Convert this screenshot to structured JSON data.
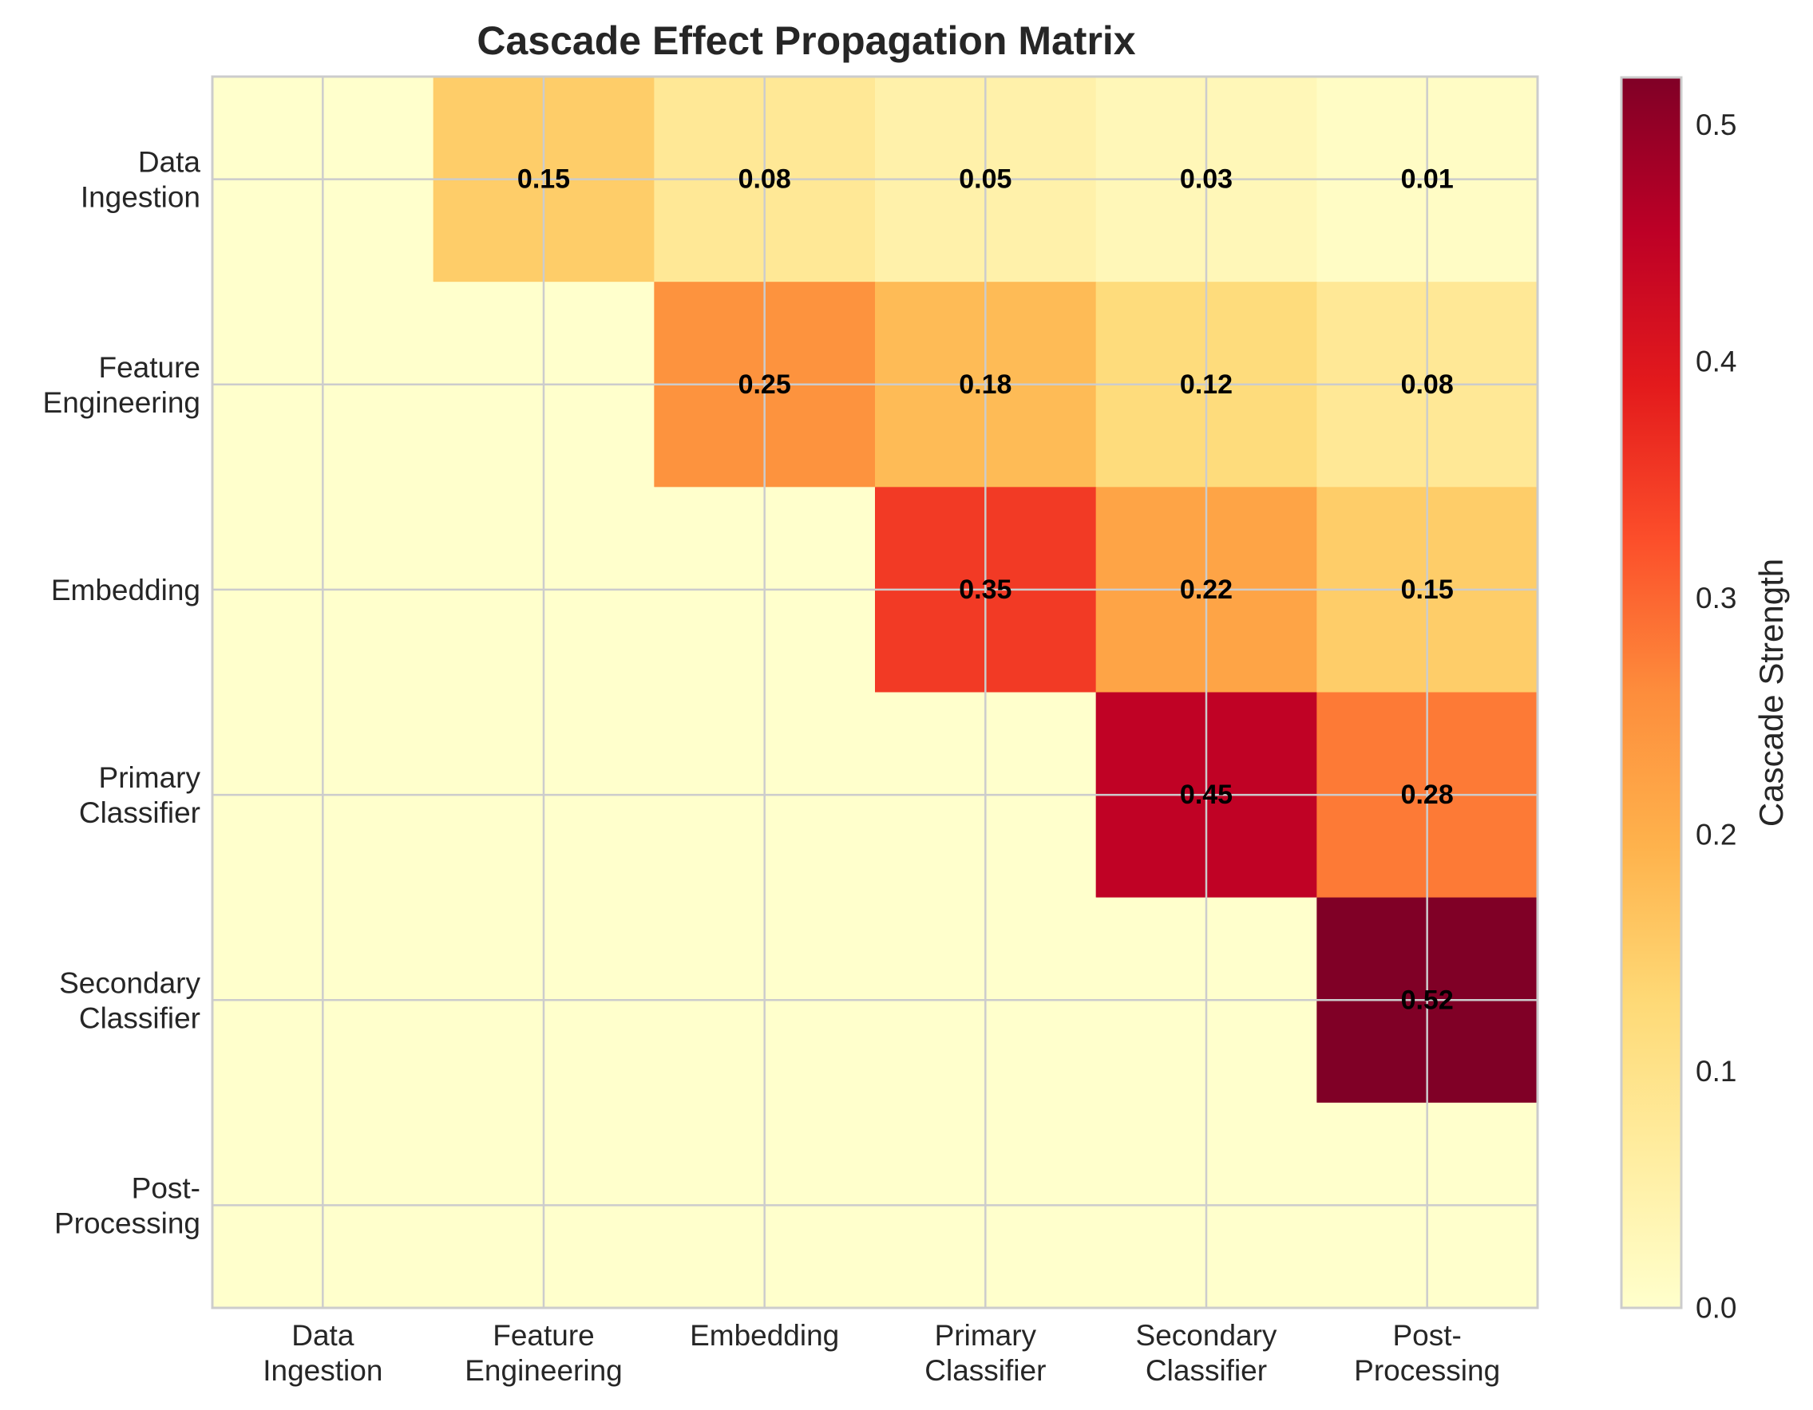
{
  "chart_data": {
    "type": "heatmap",
    "title": "Cascade Effect Propagation Matrix",
    "x_categories": [
      "Data\nIngestion",
      "Feature\nEngineering",
      "Embedding",
      "Primary\nClassifier",
      "Secondary\nClassifier",
      "Post-\nProcessing"
    ],
    "y_categories": [
      "Data\nIngestion",
      "Feature\nEngineering",
      "Embedding",
      "Primary\nClassifier",
      "Secondary\nClassifier",
      "Post-\nProcessing"
    ],
    "values": [
      [
        0,
        0.15,
        0.08,
        0.05,
        0.03,
        0.01
      ],
      [
        0,
        0,
        0.25,
        0.18,
        0.12,
        0.08
      ],
      [
        0,
        0,
        0,
        0.35,
        0.22,
        0.15
      ],
      [
        0,
        0,
        0,
        0,
        0.45,
        0.28
      ],
      [
        0,
        0,
        0,
        0,
        0,
        0.52
      ],
      [
        0,
        0,
        0,
        0,
        0,
        0
      ]
    ],
    "colormap": "YlOrRd",
    "color_range": [
      0,
      0.52
    ],
    "colorbar": {
      "label": "Cascade Strength",
      "ticks": [
        "0.0",
        "0.1",
        "0.2",
        "0.3",
        "0.4",
        "0.5"
      ],
      "tick_values": [
        0,
        0.1,
        0.2,
        0.3,
        0.4,
        0.5
      ]
    },
    "grid": true,
    "annotate_nonzero": true,
    "annotation_format": "2 decimals"
  }
}
